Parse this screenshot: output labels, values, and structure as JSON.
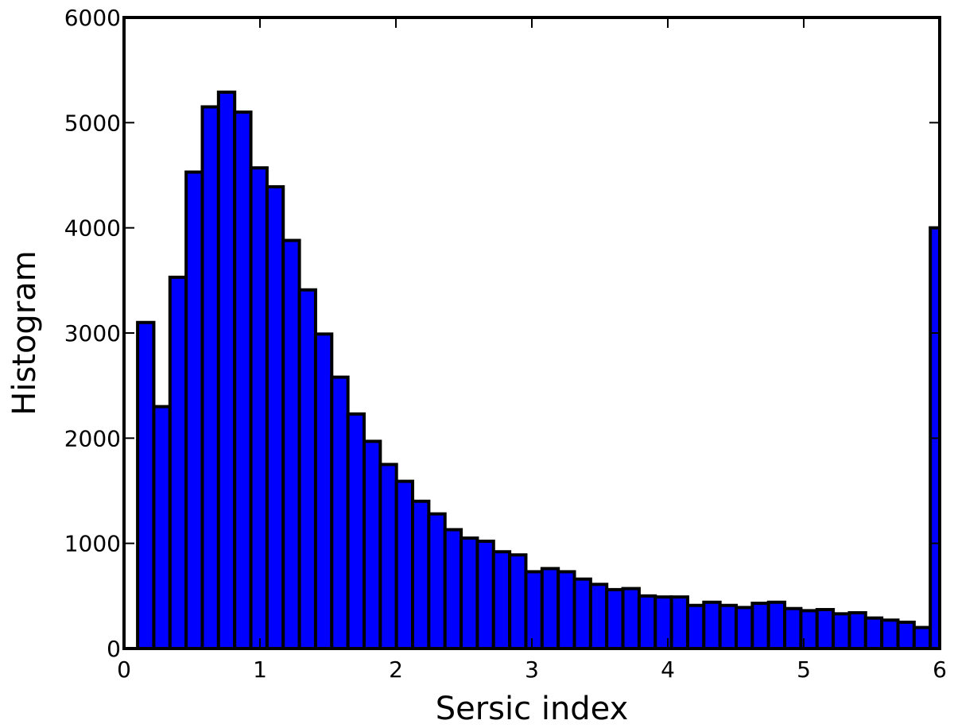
{
  "chart_data": {
    "type": "bar",
    "title": "",
    "xlabel": "Sersic index",
    "ylabel": "Histogram",
    "xlim": [
      0,
      6
    ],
    "ylim": [
      0,
      6000
    ],
    "xticks": [
      "0",
      "1",
      "2",
      "3",
      "4",
      "5",
      "6"
    ],
    "yticks": [
      "0",
      "1000",
      "2000",
      "3000",
      "4000",
      "5000",
      "6000"
    ],
    "grid": false,
    "bar_color": "#0000ff",
    "bins": {
      "start": 0.1,
      "width": 0.119,
      "values": [
        3100,
        2300,
        3530,
        4530,
        5150,
        5290,
        5100,
        4570,
        4390,
        3880,
        3410,
        2990,
        2580,
        2230,
        1970,
        1750,
        1590,
        1400,
        1280,
        1130,
        1050,
        1020,
        920,
        890,
        730,
        760,
        730,
        660,
        610,
        560,
        570,
        500,
        490,
        490,
        410,
        440,
        410,
        390,
        430,
        440,
        380,
        360,
        370,
        330,
        340,
        290,
        270,
        250,
        200,
        4000
      ]
    }
  }
}
